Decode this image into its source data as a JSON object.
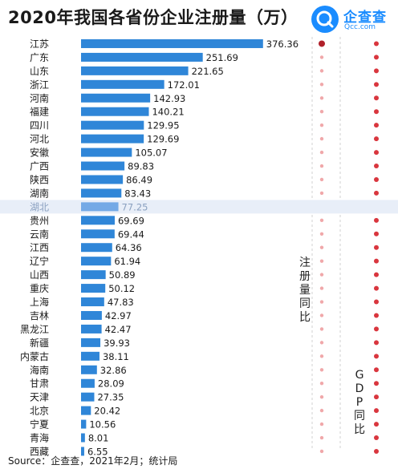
{
  "title": "2020年我国各省份企业注册量（万）",
  "logo": {
    "name": "企查查",
    "domain": "Qcc.com"
  },
  "source": "Source：企查查，2021年2月；统计局",
  "column_labels": {
    "registration_yoy": "注册量同比",
    "gdp_yoy": "GDP同比"
  },
  "colors": {
    "bar": "#2f86d8",
    "bar_highlight": "#74a9e6",
    "highlight_row": "#e8eef8",
    "dot": "#d9363e",
    "dot_light": "#f0a8aa",
    "brand": "#1a8cff"
  },
  "chart_data": {
    "type": "bar",
    "orientation": "horizontal",
    "title": "2020年我国各省份企业注册量（万）",
    "categories": [
      "江苏",
      "广东",
      "山东",
      "浙江",
      "河南",
      "福建",
      "四川",
      "河北",
      "安徽",
      "广西",
      "陕西",
      "湖南",
      "湖北",
      "贵州",
      "云南",
      "江西",
      "辽宁",
      "山西",
      "重庆",
      "上海",
      "吉林",
      "黑龙江",
      "新疆",
      "内蒙古",
      "海南",
      "甘肃",
      "天津",
      "北京",
      "宁夏",
      "青海",
      "西藏"
    ],
    "values": [
      376.36,
      251.69,
      221.65,
      172.01,
      142.93,
      140.21,
      129.95,
      129.69,
      105.07,
      89.83,
      86.49,
      83.43,
      77.25,
      69.69,
      69.44,
      64.36,
      61.94,
      50.89,
      50.12,
      47.83,
      42.97,
      42.47,
      39.93,
      38.11,
      32.86,
      28.09,
      27.35,
      20.42,
      10.56,
      8.01,
      6.55
    ],
    "highlight": "湖北",
    "xlim": [
      0,
      380
    ]
  }
}
